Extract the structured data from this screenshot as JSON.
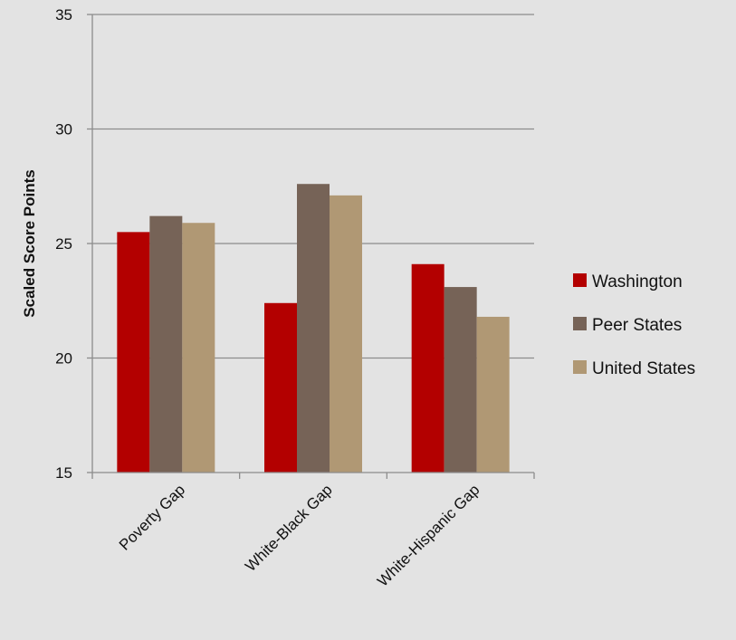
{
  "chart_data": {
    "type": "bar",
    "categories": [
      "Poverty Gap",
      "White-Black Gap",
      "White-Hispanic Gap"
    ],
    "series": [
      {
        "name": "Washington",
        "color": "#b30000",
        "values": [
          25.5,
          22.4,
          24.1
        ]
      },
      {
        "name": "Peer States",
        "color": "#766357",
        "values": [
          26.2,
          27.6,
          23.1
        ]
      },
      {
        "name": "United States",
        "color": "#b09874",
        "values": [
          25.9,
          27.1,
          21.8
        ]
      }
    ],
    "title": "",
    "xlabel": "",
    "ylabel": "Scaled Score Points",
    "ylim": [
      15,
      35
    ],
    "yticks": [
      15,
      20,
      25,
      30,
      35
    ],
    "grid": true,
    "legend": "right"
  }
}
